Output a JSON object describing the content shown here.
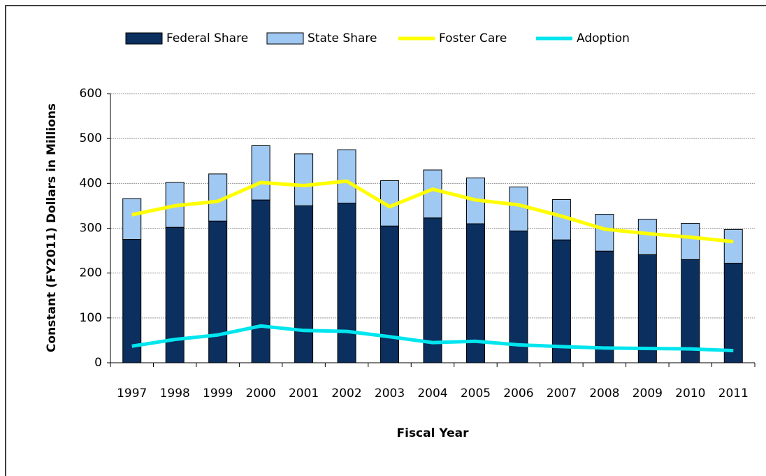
{
  "chart_data": {
    "type": "bar",
    "stacked": true,
    "x_label": "Fiscal Year",
    "y_label": "Constant (FY2011) Dollars in Millions",
    "categories": [
      "1997",
      "1998",
      "1999",
      "2000",
      "2001",
      "2002",
      "2003",
      "2004",
      "2005",
      "2006",
      "2007",
      "2008",
      "2009",
      "2010",
      "2011"
    ],
    "series": [
      {
        "name": "Federal Share",
        "type": "bar",
        "color": "#0b2f5e",
        "values": [
          275,
          302,
          316,
          363,
          350,
          356,
          305,
          323,
          310,
          294,
          274,
          249,
          241,
          230,
          222
        ]
      },
      {
        "name": "State Share",
        "type": "bar",
        "color": "#9fc8f2",
        "values": [
          91,
          100,
          105,
          121,
          116,
          119,
          101,
          107,
          102,
          98,
          90,
          82,
          79,
          81,
          75
        ]
      },
      {
        "name": "Foster Care",
        "type": "line",
        "color": "#ffff00",
        "values": [
          330,
          350,
          360,
          402,
          395,
          405,
          348,
          387,
          363,
          352,
          327,
          298,
          288,
          280,
          270
        ]
      },
      {
        "name": "Adoption",
        "type": "line",
        "color": "#00e5ee",
        "values": [
          37,
          52,
          62,
          82,
          72,
          70,
          58,
          45,
          48,
          40,
          36,
          33,
          32,
          31,
          27
        ]
      }
    ],
    "ylim": [
      0,
      600
    ],
    "yticks": [
      0,
      100,
      200,
      300,
      400,
      500,
      600
    ],
    "grid": true,
    "legend": "top"
  }
}
